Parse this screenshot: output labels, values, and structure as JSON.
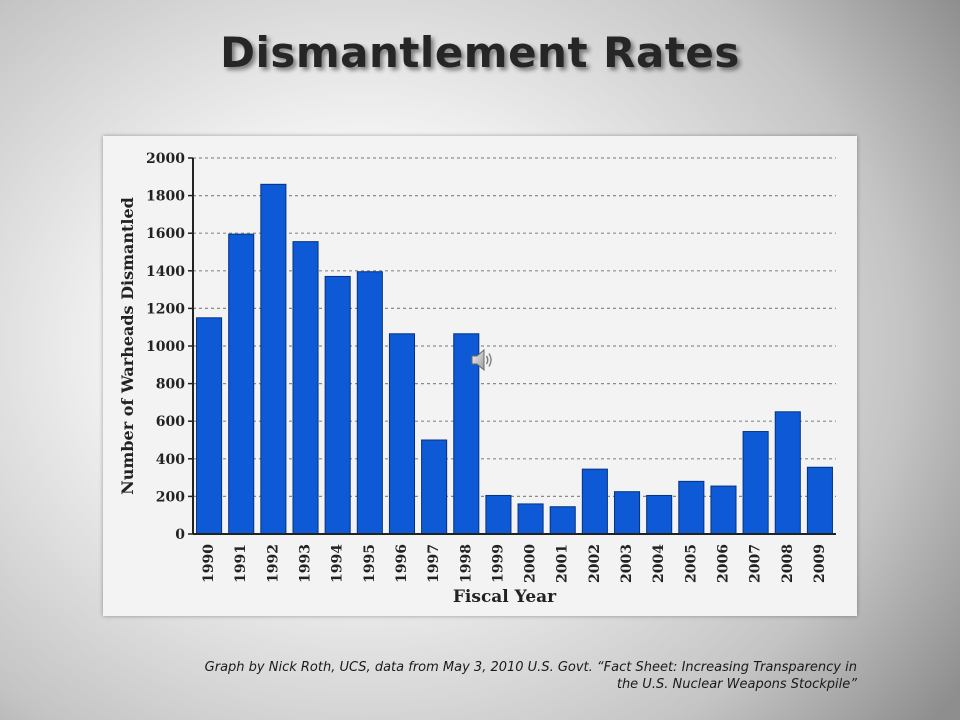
{
  "slide": {
    "title": "Dismantlement Rates",
    "caption_line1": "Graph by Nick Roth, UCS, data from May 3, 2010 U.S. Govt. “Fact Sheet: Increasing Transparency in",
    "caption_line2": "the U.S. Nuclear Weapons Stockpile”",
    "audio_icon": "speaker-icon"
  },
  "colors": {
    "bar": "#0d59d6",
    "bar_edge": "#06327f",
    "grid": "#8a8a8a",
    "axis": "#222222"
  },
  "chart_data": {
    "type": "bar",
    "xlabel": "Fiscal Year",
    "ylabel": "Number of Warheads Dismantled",
    "ylim": [
      0,
      2000
    ],
    "yticks": [
      0,
      200,
      400,
      600,
      800,
      1000,
      1200,
      1400,
      1600,
      1800,
      2000
    ],
    "grid": true,
    "categories": [
      "1990",
      "1991",
      "1992",
      "1993",
      "1994",
      "1995",
      "1996",
      "1997",
      "1998",
      "1999",
      "2000",
      "2001",
      "2002",
      "2003",
      "2004",
      "2005",
      "2006",
      "2007",
      "2008",
      "2009"
    ],
    "values": [
      1150,
      1595,
      1860,
      1555,
      1370,
      1395,
      1065,
      500,
      1065,
      205,
      160,
      145,
      345,
      225,
      205,
      280,
      255,
      545,
      650,
      355
    ]
  }
}
